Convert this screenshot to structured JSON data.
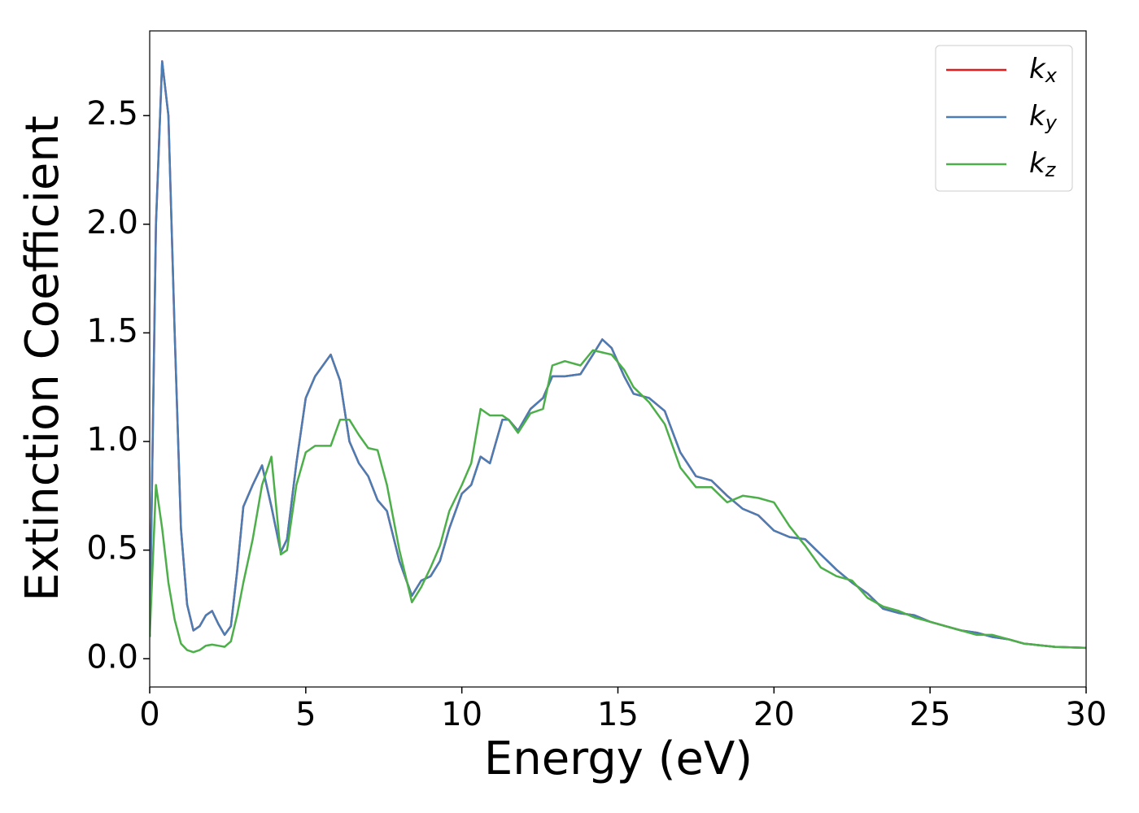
{
  "chart_data": {
    "type": "line",
    "xlabel": "Energy (eV)",
    "ylabel": "Extinction Coefficient",
    "x": [
      0,
      0.2,
      0.4,
      0.6,
      0.8,
      1.0,
      1.2,
      1.4,
      1.6,
      1.8,
      2.0,
      2.2,
      2.4,
      2.6,
      2.8,
      3.0,
      3.3,
      3.6,
      3.9,
      4.2,
      4.4,
      4.7,
      5.0,
      5.3,
      5.8,
      6.1,
      6.4,
      6.7,
      7.0,
      7.3,
      7.6,
      8.0,
      8.4,
      8.7,
      9.0,
      9.3,
      9.6,
      10.0,
      10.3,
      10.6,
      10.9,
      11.3,
      11.5,
      11.8,
      12.2,
      12.6,
      12.9,
      13.3,
      13.8,
      14.2,
      14.5,
      14.8,
      15.2,
      15.5,
      16.0,
      16.5,
      17.0,
      17.5,
      18.0,
      18.5,
      19.0,
      19.5,
      20.0,
      20.5,
      21.0,
      21.5,
      22.0,
      22.5,
      23.0,
      23.5,
      24.0,
      24.5,
      25.0,
      25.5,
      26.0,
      26.5,
      27.0,
      27.5,
      28.0,
      29.0,
      30.0
    ],
    "series": [
      {
        "name": "kx",
        "color": "#e41a1c",
        "values": [
          0.1,
          2.0,
          2.75,
          2.5,
          1.5,
          0.6,
          0.25,
          0.13,
          0.15,
          0.2,
          0.22,
          0.16,
          0.11,
          0.15,
          0.4,
          0.7,
          0.8,
          0.89,
          0.7,
          0.49,
          0.55,
          0.9,
          1.2,
          1.3,
          1.4,
          1.28,
          1.0,
          0.9,
          0.84,
          0.73,
          0.68,
          0.45,
          0.29,
          0.36,
          0.38,
          0.45,
          0.6,
          0.76,
          0.8,
          0.93,
          0.9,
          1.1,
          1.1,
          1.05,
          1.15,
          1.2,
          1.3,
          1.3,
          1.31,
          1.4,
          1.47,
          1.43,
          1.3,
          1.22,
          1.2,
          1.14,
          0.95,
          0.84,
          0.82,
          0.75,
          0.69,
          0.66,
          0.59,
          0.56,
          0.55,
          0.48,
          0.41,
          0.35,
          0.3,
          0.23,
          0.21,
          0.2,
          0.17,
          0.15,
          0.13,
          0.12,
          0.1,
          0.09,
          0.07,
          0.055,
          0.05
        ]
      },
      {
        "name": "ky",
        "color": "#4a7db4",
        "values": [
          0.1,
          2.0,
          2.75,
          2.5,
          1.5,
          0.6,
          0.25,
          0.13,
          0.15,
          0.2,
          0.22,
          0.16,
          0.11,
          0.15,
          0.4,
          0.7,
          0.8,
          0.89,
          0.7,
          0.49,
          0.55,
          0.9,
          1.2,
          1.3,
          1.4,
          1.28,
          1.0,
          0.9,
          0.84,
          0.73,
          0.68,
          0.45,
          0.29,
          0.36,
          0.38,
          0.45,
          0.6,
          0.76,
          0.8,
          0.93,
          0.9,
          1.1,
          1.1,
          1.05,
          1.15,
          1.2,
          1.3,
          1.3,
          1.31,
          1.4,
          1.47,
          1.43,
          1.3,
          1.22,
          1.2,
          1.14,
          0.95,
          0.84,
          0.82,
          0.75,
          0.69,
          0.66,
          0.59,
          0.56,
          0.55,
          0.48,
          0.41,
          0.35,
          0.3,
          0.23,
          0.21,
          0.2,
          0.17,
          0.15,
          0.13,
          0.12,
          0.1,
          0.09,
          0.07,
          0.055,
          0.05
        ]
      },
      {
        "name": "kz",
        "color": "#4daf4a",
        "values": [
          0.1,
          0.8,
          0.6,
          0.35,
          0.18,
          0.07,
          0.04,
          0.03,
          0.04,
          0.06,
          0.065,
          0.06,
          0.055,
          0.08,
          0.2,
          0.35,
          0.55,
          0.8,
          0.93,
          0.48,
          0.5,
          0.8,
          0.95,
          0.98,
          0.98,
          1.1,
          1.1,
          1.03,
          0.97,
          0.96,
          0.8,
          0.5,
          0.26,
          0.33,
          0.42,
          0.52,
          0.68,
          0.8,
          0.9,
          1.15,
          1.12,
          1.12,
          1.1,
          1.04,
          1.13,
          1.15,
          1.35,
          1.37,
          1.35,
          1.42,
          1.41,
          1.4,
          1.33,
          1.25,
          1.18,
          1.08,
          0.88,
          0.79,
          0.79,
          0.72,
          0.75,
          0.74,
          0.72,
          0.61,
          0.52,
          0.42,
          0.38,
          0.36,
          0.28,
          0.24,
          0.22,
          0.19,
          0.17,
          0.15,
          0.13,
          0.11,
          0.11,
          0.09,
          0.07,
          0.055,
          0.05
        ]
      }
    ],
    "xlim": [
      0,
      30
    ],
    "xticks": [
      0,
      5,
      10,
      15,
      20,
      25,
      30
    ],
    "ylim": [
      -0.13,
      2.89
    ],
    "yticks": [
      {
        "value": 0,
        "label": "0.0"
      },
      {
        "value": 0.5,
        "label": "0.5"
      },
      {
        "value": 1,
        "label": "1.0"
      },
      1.5,
      {
        "value": 2,
        "label": "2.0"
      },
      2.5
    ],
    "legend": "upper right"
  }
}
